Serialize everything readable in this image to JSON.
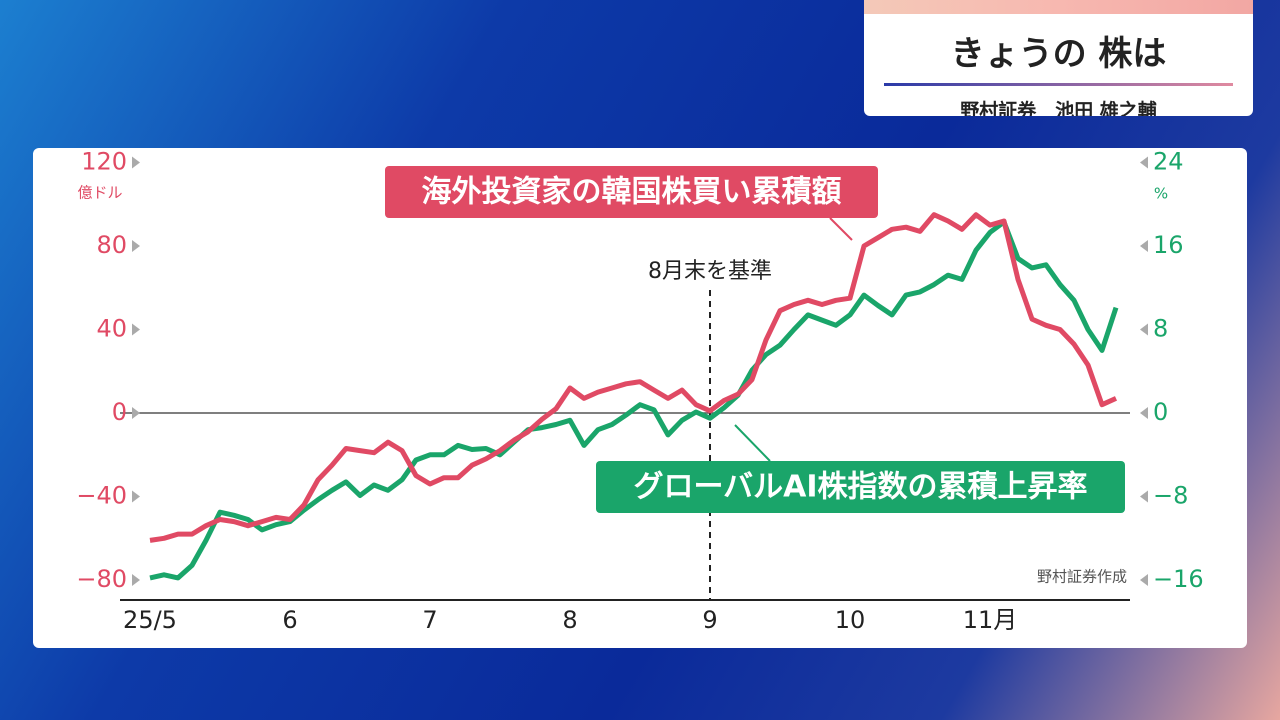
{
  "header": {
    "title": "きょうの 株は",
    "subtitle": "野村証券　池田 雄之輔"
  },
  "chart_data": {
    "type": "line",
    "categories": [
      "25/5",
      null,
      null,
      null,
      null,
      null,
      null,
      null,
      null,
      null,
      "6",
      null,
      null,
      null,
      null,
      null,
      null,
      null,
      null,
      null,
      "7",
      null,
      null,
      null,
      null,
      null,
      null,
      null,
      null,
      null,
      "8",
      null,
      null,
      null,
      null,
      null,
      null,
      null,
      null,
      null,
      "9",
      null,
      null,
      null,
      null,
      null,
      null,
      null,
      null,
      null,
      "10",
      null,
      null,
      null,
      null,
      null,
      null,
      null,
      null,
      null,
      "11月",
      null,
      null,
      null,
      null,
      null,
      null,
      null,
      null,
      null
    ],
    "series": [
      {
        "name": "海外投資家の韓国株買い累積額",
        "color": "#e04a64",
        "axis": "y",
        "values": [
          -61,
          -60,
          -58,
          -58,
          -54,
          -51,
          -52,
          -54,
          -52,
          -50,
          -51,
          -44,
          -32,
          -25,
          -17,
          -18,
          -19,
          -14,
          -18,
          -30,
          -34,
          -31,
          -31,
          -25,
          -22,
          -18,
          -13,
          -9,
          -3,
          2,
          12,
          7,
          10,
          12,
          14,
          15,
          11,
          7,
          11,
          4,
          1,
          6,
          9,
          16,
          35,
          49,
          52,
          54,
          52,
          54,
          55,
          80,
          84,
          88,
          89,
          87,
          95,
          92,
          88,
          95,
          90,
          92,
          64,
          45,
          42,
          40,
          33,
          23,
          4,
          7
        ]
      },
      {
        "name": "グローバルAI株指数の累積上昇率",
        "color": "#1aa56a",
        "axis": "y2",
        "values": [
          -15.8,
          -15.5,
          -15.8,
          -14.6,
          -12.2,
          -9.5,
          -9.8,
          -10.2,
          -11.2,
          -10.7,
          -10.4,
          -9.3,
          -8.3,
          -7.4,
          -6.6,
          -7.9,
          -6.9,
          -7.4,
          -6.4,
          -4.5,
          -4.0,
          -4.0,
          -3.1,
          -3.5,
          -3.4,
          -4.0,
          -2.8,
          -1.6,
          -1.4,
          -1.1,
          -0.7,
          -3.1,
          -1.6,
          -1.1,
          -0.2,
          0.8,
          0.3,
          -2.1,
          -0.7,
          0.1,
          -0.5,
          0.5,
          1.7,
          4.1,
          5.6,
          6.5,
          8.0,
          9.4,
          8.9,
          8.4,
          9.4,
          11.3,
          10.3,
          9.4,
          11.3,
          11.6,
          12.3,
          13.2,
          12.8,
          15.6,
          17.3,
          18.3,
          14.8,
          13.9,
          14.2,
          12.3,
          10.8,
          8.0,
          6.0,
          10.1
        ]
      }
    ],
    "ylim": [
      -90,
      120
    ],
    "yticks": [
      {
        "value": -80,
        "label": "−80"
      },
      {
        "value": -40,
        "label": "−40"
      },
      0,
      40,
      80,
      120
    ],
    "ylabel": "億ドル",
    "y2lim": [
      -18,
      24
    ],
    "y2ticks": [
      {
        "value": -16,
        "label": "−16"
      },
      {
        "value": -8,
        "label": "−8"
      },
      0,
      8,
      16,
      24
    ],
    "y2label": "%",
    "hline": 0,
    "annotations": [
      {
        "text": "8月末を基準",
        "category": "9"
      }
    ],
    "source": "野村証券作成",
    "grid": false
  }
}
